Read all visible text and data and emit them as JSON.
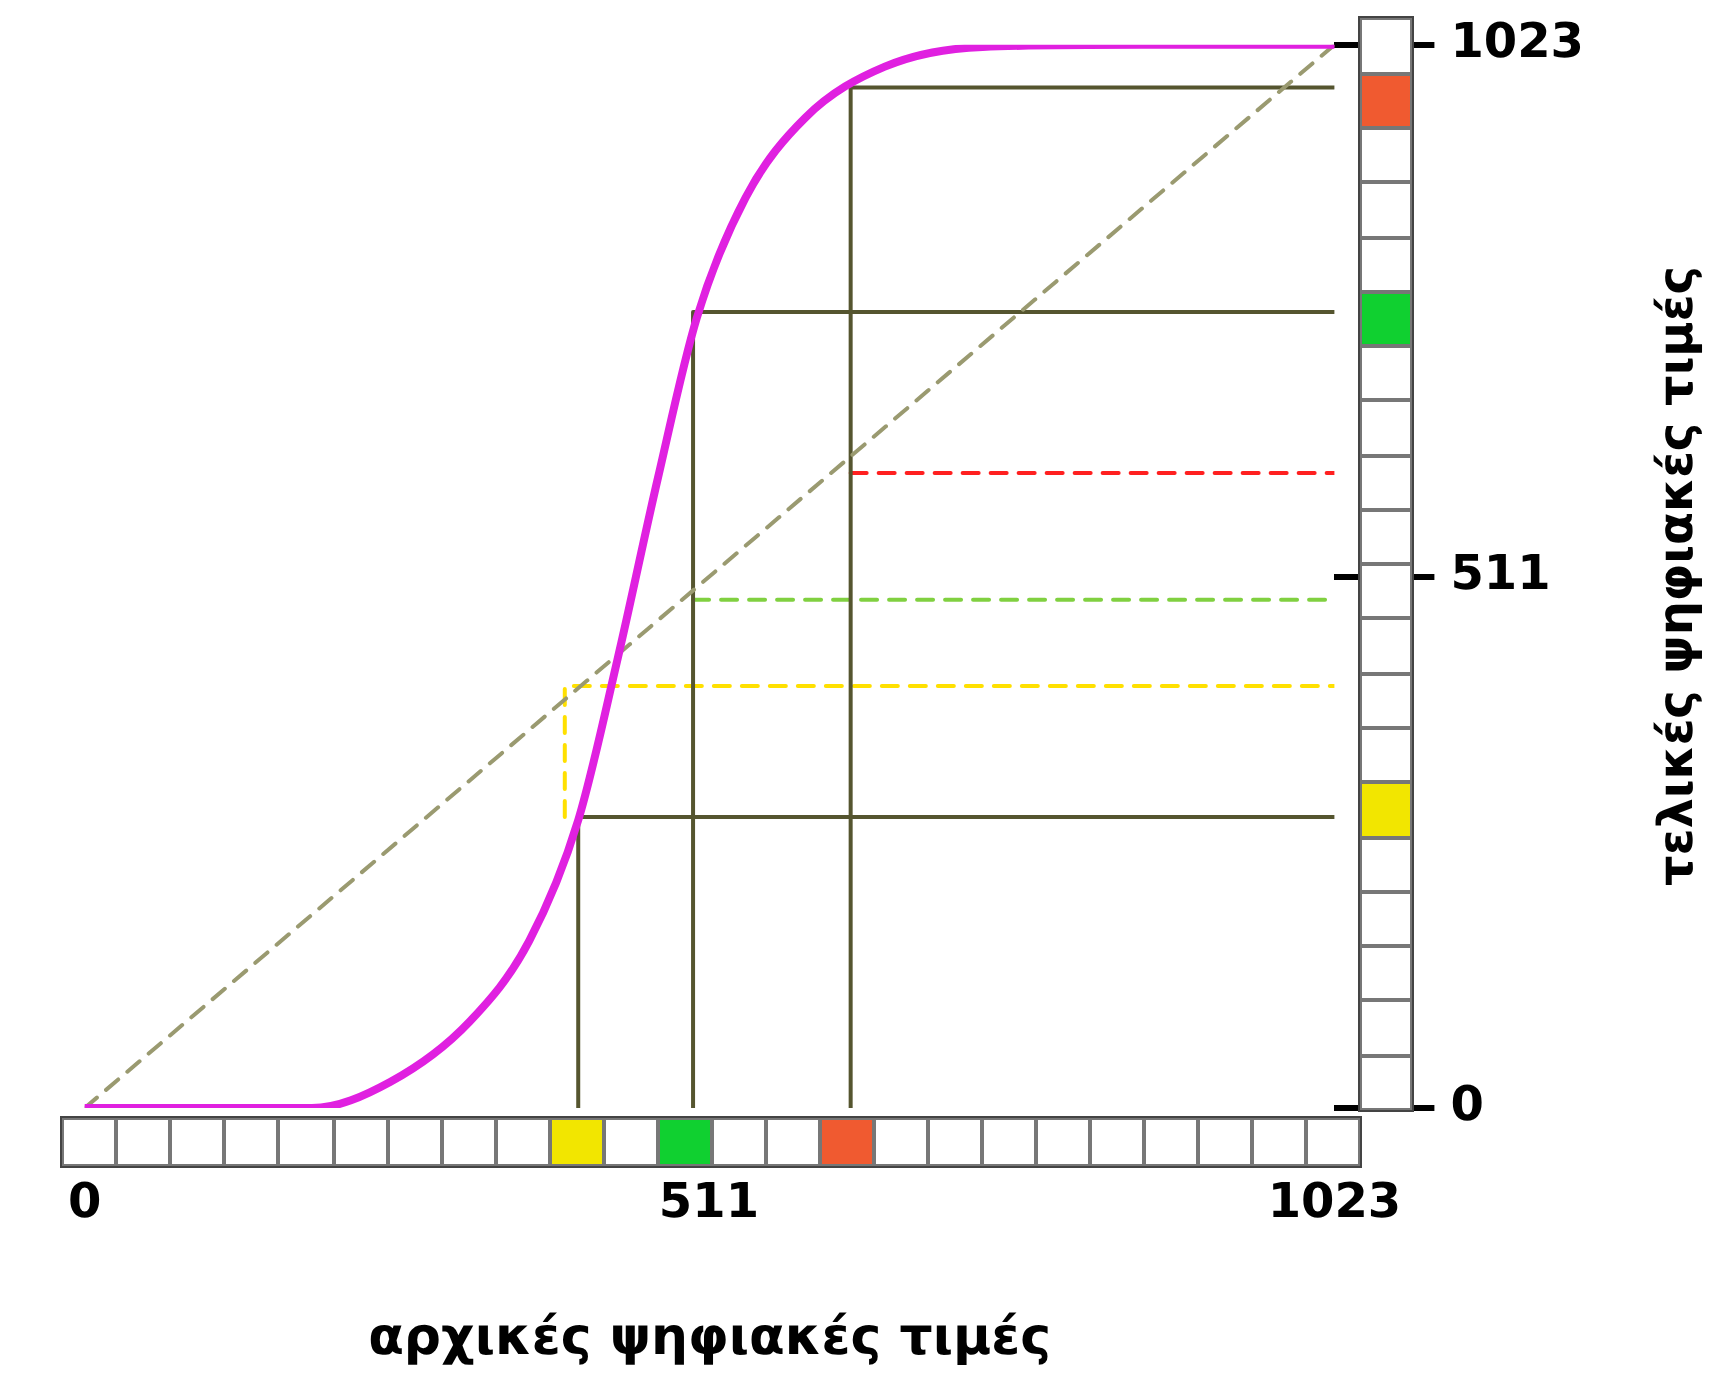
{
  "chart_data": {
    "type": "line",
    "xlabel": "αρχικές ψηφιακές τιμές",
    "ylabel": "τελικές ψηφιακές τιμές",
    "xlim": [
      0,
      1023
    ],
    "ylim": [
      0,
      1023
    ],
    "xticks": [
      0,
      511,
      1023
    ],
    "yticks": [
      0,
      511,
      1023
    ],
    "grid": false,
    "legend": false,
    "marker": "none",
    "series": [
      {
        "color": "#e020e0",
        "line_style": "solid",
        "x": [
          0,
          186,
          250,
          315,
          364,
          404,
          436,
          469,
          501,
          541,
          590,
          655,
          735,
          865,
          1023
        ],
        "values": [
          0,
          0,
          25,
          83,
          161,
          277,
          431,
          605,
          760,
          876,
          953,
          1002,
          1021,
          1023,
          1023
        ]
      },
      {
        "color": "#9a9a70",
        "line_style": "dashed",
        "x": [
          0,
          1023
        ],
        "values": [
          0,
          1023
        ]
      },
      {
        "color": "#55552f",
        "line_style": "solid",
        "x": [
          404,
          404,
          1023
        ],
        "values": [
          0,
          280,
          280
        ]
      },
      {
        "color": "#55552f",
        "line_style": "solid",
        "x": [
          498,
          498,
          1023
        ],
        "values": [
          0,
          766,
          766
        ]
      },
      {
        "color": "#55552f",
        "line_style": "solid",
        "x": [
          627,
          627,
          1023
        ],
        "values": [
          0,
          982,
          982
        ]
      },
      {
        "color": "#ff2020",
        "line_style": "dashed",
        "x": [
          627,
          1023
        ],
        "values": [
          611,
          611
        ]
      },
      {
        "color": "#80d040",
        "line_style": "dashed",
        "x": [
          498,
          1023
        ],
        "values": [
          489,
          489
        ]
      },
      {
        "color": "#ffe000",
        "line_style": "dashed",
        "x": [
          393,
          393,
          1023
        ],
        "values": [
          280,
          406,
          406
        ]
      }
    ]
  }
}
